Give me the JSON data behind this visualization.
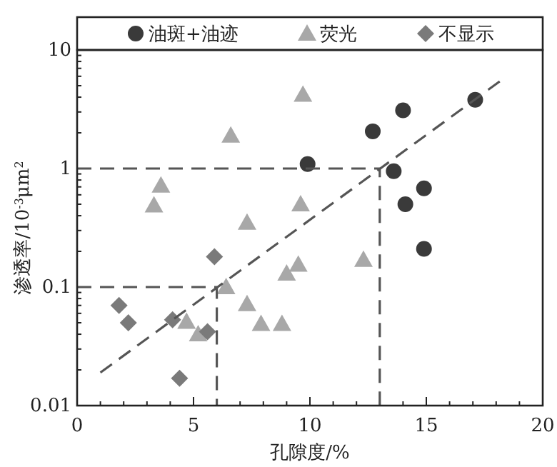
{
  "chart_data": {
    "type": "scatter",
    "xlabel": "孔隙度/%",
    "ylabel": "渗透率/10$^{-3}$μm$^{2}$",
    "log": "y",
    "xlim": [
      0,
      20
    ],
    "ylim": [
      0.01,
      10
    ],
    "xticks": [
      0,
      5,
      10,
      15,
      20
    ],
    "yticks": [
      0.01,
      0.1,
      1,
      10
    ],
    "legend": "top",
    "grid": false,
    "series": [
      {
        "name": "油斑+油迹",
        "color": "#3a3a3a",
        "marker": "circle",
        "x": [
          9.9,
          12.7,
          14.0,
          13.6,
          14.1,
          14.9,
          14.9,
          17.1
        ],
        "values": [
          1.09,
          2.06,
          3.1,
          0.95,
          0.5,
          0.68,
          0.21,
          3.8
        ]
      },
      {
        "name": "荧光",
        "color": "#a8a8a8",
        "marker": "triangle",
        "x": [
          3.3,
          3.6,
          6.6,
          9.7,
          9.6,
          7.3,
          9.5,
          9.0,
          12.3,
          6.4,
          7.3,
          7.9,
          8.8,
          4.7,
          5.2
        ],
        "values": [
          0.49,
          0.72,
          1.9,
          4.2,
          0.5,
          0.35,
          0.155,
          0.13,
          0.17,
          0.1,
          0.072,
          0.049,
          0.049,
          0.051,
          0.04
        ]
      },
      {
        "name": "不显示",
        "color": "#7a7a7a",
        "marker": "diamond",
        "x": [
          1.8,
          2.2,
          4.1,
          5.6,
          5.9,
          4.4
        ],
        "values": [
          0.07,
          0.05,
          0.053,
          0.042,
          0.18,
          0.017
        ]
      },
      {
        "type": "line",
        "color": "#555555",
        "line_style": "dashed",
        "marker": "none",
        "x": [
          1,
          18.3
        ],
        "values": [
          0.019,
          5.7
        ]
      },
      {
        "type": "line",
        "color": "#555555",
        "line_style": "dashed",
        "marker": "none",
        "x": [
          0,
          6,
          6
        ],
        "values": [
          0.1,
          0.1,
          0.01
        ]
      },
      {
        "type": "line",
        "color": "#555555",
        "line_style": "dashed",
        "marker": "none",
        "x": [
          0,
          13,
          13
        ],
        "values": [
          1,
          1,
          0.01
        ]
      }
    ]
  }
}
